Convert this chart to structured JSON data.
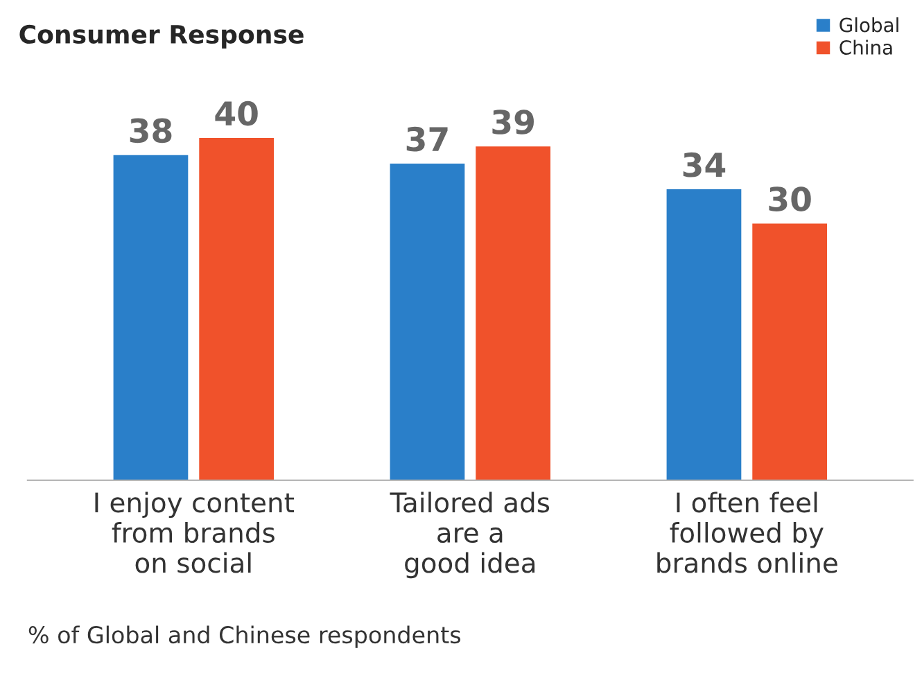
{
  "chart_data": {
    "type": "bar",
    "title": "Consumer Response",
    "categories": [
      "I enjoy content\nfrom brands\non social",
      "Tailored ads\nare a\ngood idea",
      "I often feel\nfollowed by\nbrands online"
    ],
    "series": [
      {
        "name": "Global",
        "color": "#2a7fc9",
        "values": [
          38,
          37,
          34
        ]
      },
      {
        "name": "China",
        "color": "#f0522b",
        "values": [
          40,
          39,
          30
        ]
      }
    ],
    "data_labels": true,
    "legend": "top right",
    "grid": false,
    "annotations": [
      "% of Global and Chinese respondents"
    ]
  }
}
